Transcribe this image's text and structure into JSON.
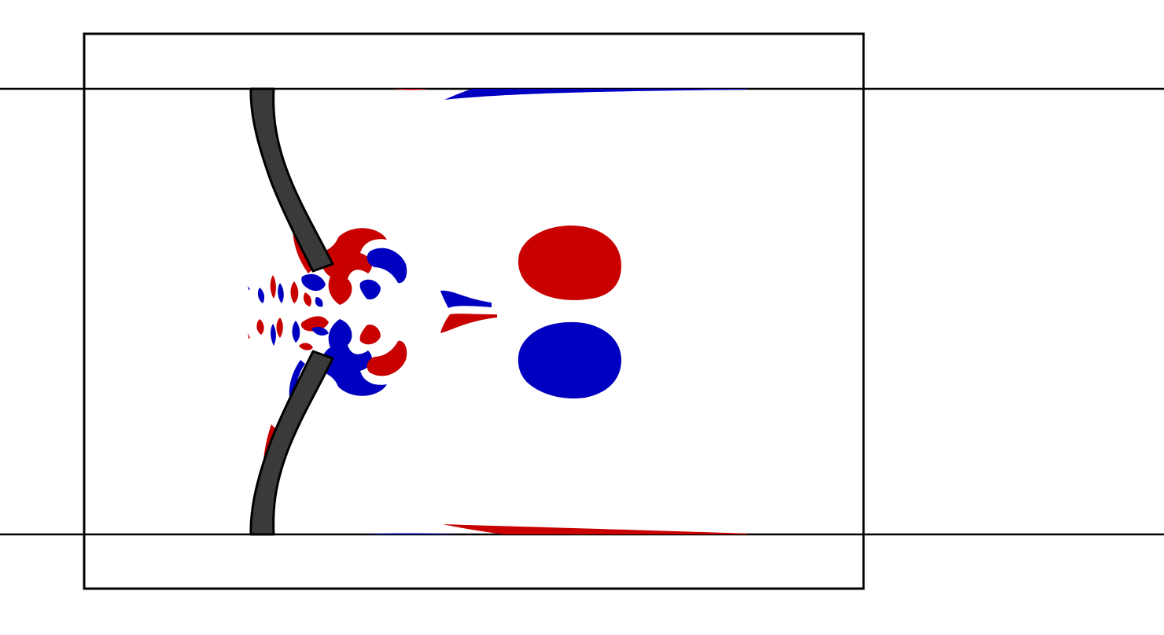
{
  "figure": {
    "description_visible_text": [],
    "colors": {
      "positive_vorticity": "#c80000",
      "negative_vorticity": "#0000c0",
      "leaflet_fill": "#3a3a38",
      "outline": "#000000",
      "background": "#ffffff"
    },
    "elements": {
      "channel": "channel",
      "domain_box": "domain",
      "leaflets": [
        "upper",
        "lower"
      ],
      "vortex_pair": [
        "positive",
        "negative"
      ]
    }
  }
}
